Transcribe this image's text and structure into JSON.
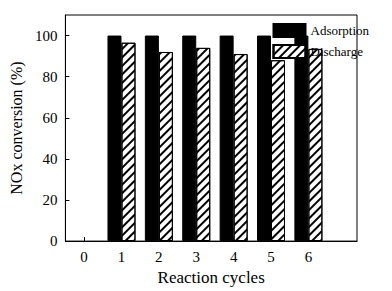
{
  "chart_data": {
    "type": "bar",
    "x_label": "Reaction cycles",
    "y_label": "NOx conversion (%)",
    "x": [
      1,
      2,
      3,
      4,
      5,
      6
    ],
    "series": [
      {
        "name": "Adsorption",
        "color": "#000000",
        "values": [
          100,
          100,
          100,
          100,
          100,
          100
        ]
      },
      {
        "name": "Discharge",
        "color": "#000000",
        "marker": "hatch",
        "values": [
          96.5,
          92,
          94,
          91,
          88,
          93.5
        ]
      }
    ],
    "xlim": [
      -0.5,
      7.3
    ],
    "xticks": [
      0,
      1,
      2,
      3,
      4,
      5,
      6
    ],
    "ylim": [
      0,
      110
    ],
    "yticks": [
      0,
      20,
      40,
      60,
      80,
      100
    ],
    "grid": false,
    "legend": "upper right"
  }
}
